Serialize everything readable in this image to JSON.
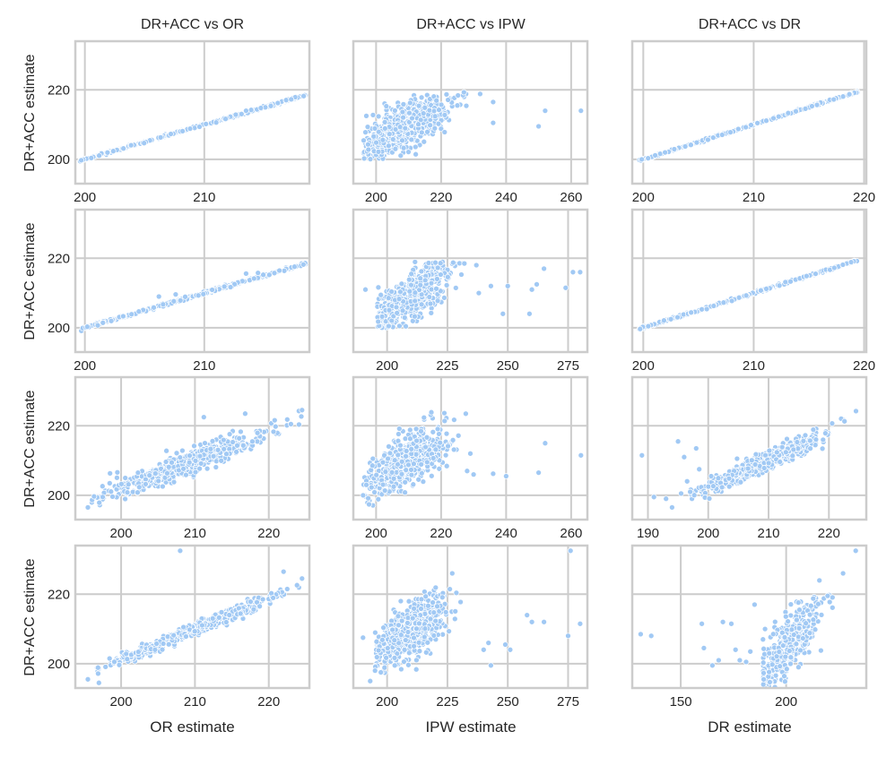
{
  "figure": {
    "col_titles": [
      "DR+ACC vs OR",
      "DR+ACC vs IPW",
      "DR+ACC vs DR"
    ],
    "row_ylabel": "DR+ACC estimate",
    "xlabels": [
      "OR estimate",
      "IPW estimate",
      "DR estimate"
    ]
  },
  "colors": {
    "point": "#a1c9f4",
    "point_edge": "#ffffff",
    "grid": "#cccccc",
    "frame": "#cccccc",
    "text": "#262626"
  },
  "chart_data": [
    {
      "type": "scatter",
      "row": 0,
      "col": 0,
      "title": "DR+ACC vs OR",
      "ylabel": "DR+ACC estimate",
      "xlim": [
        199.2,
        218.8
      ],
      "ylim": [
        193,
        234
      ],
      "xticks": [
        200,
        210
      ],
      "yticks": [
        200,
        220
      ],
      "pattern": "line",
      "x_range": [
        199.6,
        218.6
      ],
      "slope": 1.0,
      "intercept": 0,
      "noise": 0.15,
      "n": 300,
      "outliers": [
        [
          213.5,
          214.0
        ],
        [
          211.0,
          210.6
        ]
      ]
    },
    {
      "type": "scatter",
      "row": 0,
      "col": 1,
      "title": "DR+ACC vs IPW",
      "ylabel": "DR+ACC estimate",
      "xlim": [
        193,
        265
      ],
      "ylim": [
        193,
        234
      ],
      "xticks": [
        200,
        220,
        240,
        260
      ],
      "yticks": [
        200,
        220
      ],
      "pattern": "cloud",
      "x_center": 209,
      "x_spread": 6.5,
      "slope": 0.45,
      "intercept": 115.5,
      "noise": 3.2,
      "x_min": 196,
      "y_clip": [
        200,
        219
      ],
      "n": 620,
      "outliers": [
        [
          197,
          212.5
        ],
        [
          232,
          218.8
        ],
        [
          236,
          216.5
        ],
        [
          236,
          210.5
        ],
        [
          250,
          209.5
        ],
        [
          252,
          214
        ],
        [
          263,
          214
        ],
        [
          227,
          219.3
        ],
        [
          225,
          215.5
        ]
      ]
    },
    {
      "type": "scatter",
      "row": 0,
      "col": 2,
      "title": "DR+ACC vs DR",
      "ylabel": "DR+ACC estimate",
      "xlim": [
        199.0,
        220.2
      ],
      "ylim": [
        193,
        234
      ],
      "xticks": [
        200,
        210,
        220
      ],
      "yticks": [
        200,
        220
      ],
      "pattern": "line",
      "x_range": [
        199.6,
        219.4
      ],
      "slope": 1.0,
      "intercept": 0,
      "noise": 0.12,
      "n": 300,
      "outliers": []
    },
    {
      "type": "scatter",
      "row": 1,
      "col": 0,
      "title": "",
      "ylabel": "DR+ACC estimate",
      "xlim": [
        199.2,
        218.8
      ],
      "ylim": [
        193,
        234
      ],
      "xticks": [
        200,
        210
      ],
      "yticks": [
        200,
        220
      ],
      "pattern": "line",
      "x_range": [
        199.6,
        218.6
      ],
      "slope": 1.0,
      "intercept": 0,
      "noise": 0.2,
      "n": 300,
      "outliers": [
        [
          206.2,
          209.0
        ],
        [
          207.6,
          209.6
        ],
        [
          213.5,
          215.6
        ],
        [
          214.5,
          215.8
        ]
      ]
    },
    {
      "type": "scatter",
      "row": 1,
      "col": 1,
      "title": "",
      "ylabel": "DR+ACC estimate",
      "xlim": [
        186,
        283
      ],
      "ylim": [
        193,
        234
      ],
      "xticks": [
        200,
        225,
        250,
        275
      ],
      "yticks": [
        200,
        220
      ],
      "pattern": "cloud",
      "x_center": 210,
      "x_spread": 7.5,
      "slope": 0.42,
      "intercept": 121,
      "noise": 3.2,
      "x_min": 196,
      "y_clip": [
        200,
        219
      ],
      "n": 640,
      "outliers": [
        [
          191,
          211
        ],
        [
          238,
          210
        ],
        [
          243,
          212
        ],
        [
          248,
          204
        ],
        [
          250,
          212
        ],
        [
          259,
          204
        ],
        [
          260,
          211
        ],
        [
          262,
          212.5
        ],
        [
          265,
          217
        ],
        [
          274,
          211.5
        ],
        [
          277,
          216
        ],
        [
          280,
          216
        ],
        [
          237,
          218
        ],
        [
          232,
          218.5
        ]
      ]
    },
    {
      "type": "scatter",
      "row": 1,
      "col": 2,
      "title": "",
      "ylabel": "DR+ACC estimate",
      "xlim": [
        199.0,
        220.2
      ],
      "ylim": [
        193,
        234
      ],
      "xticks": [
        200,
        210,
        220
      ],
      "yticks": [
        200,
        220
      ],
      "pattern": "line",
      "x_range": [
        199.6,
        219.4
      ],
      "slope": 1.0,
      "intercept": 0,
      "noise": 0.15,
      "n": 300,
      "outliers": []
    },
    {
      "type": "scatter",
      "row": 2,
      "col": 0,
      "title": "",
      "ylabel": "DR+ACC estimate",
      "xlim": [
        193.8,
        225.5
      ],
      "ylim": [
        193,
        234
      ],
      "xticks": [
        200,
        210,
        220
      ],
      "yticks": [
        200,
        220
      ],
      "pattern": "band",
      "x_center": 209,
      "x_spread": 5.5,
      "x_clip": [
        196,
        224.5
      ],
      "slope": 0.8,
      "intercept": 42,
      "noise": 1.6,
      "n": 560,
      "outliers": [
        [
          195.5,
          196.5
        ],
        [
          197.5,
          199.5
        ],
        [
          198.5,
          206.3
        ],
        [
          199.5,
          206.6
        ],
        [
          211.2,
          222.5
        ],
        [
          216.8,
          223.5
        ],
        [
          224.5,
          224.5
        ],
        [
          222.5,
          221.8
        ],
        [
          223,
          220.5
        ]
      ]
    },
    {
      "type": "scatter",
      "row": 2,
      "col": 1,
      "title": "",
      "ylabel": "DR+ACC estimate",
      "xlim": [
        193,
        265
      ],
      "ylim": [
        193,
        234
      ],
      "xticks": [
        200,
        220,
        240,
        260
      ],
      "yticks": [
        200,
        220
      ],
      "pattern": "cloud",
      "x_center": 210,
      "x_spread": 6,
      "slope": 0.55,
      "intercept": 94.5,
      "noise": 3.6,
      "x_min": 196,
      "y_clip": [
        197,
        224
      ],
      "n": 640,
      "outliers": [
        [
          196,
          200
        ],
        [
          197,
          203
        ],
        [
          228,
          207
        ],
        [
          229,
          212
        ],
        [
          230,
          206
        ],
        [
          236,
          206.2
        ],
        [
          240,
          205.5
        ],
        [
          250,
          206.5
        ],
        [
          252,
          215
        ],
        [
          263,
          211.5
        ]
      ]
    },
    {
      "type": "scatter",
      "row": 2,
      "col": 2,
      "title": "",
      "ylabel": "DR+ACC estimate",
      "xlim": [
        187.4,
        226.2
      ],
      "ylim": [
        193,
        234
      ],
      "xticks": [
        190,
        200,
        210,
        220
      ],
      "yticks": [
        200,
        220
      ],
      "pattern": "band",
      "x_center": 209,
      "x_spread": 5,
      "x_clip": [
        197,
        224.5
      ],
      "slope": 0.8,
      "intercept": 42,
      "noise": 1.4,
      "n": 560,
      "outliers": [
        [
          189,
          211.5
        ],
        [
          191,
          199.5
        ],
        [
          193,
          199
        ],
        [
          194,
          196.5
        ],
        [
          195,
          215.5
        ],
        [
          195.5,
          200.5
        ],
        [
          196,
          211
        ],
        [
          197,
          201
        ],
        [
          198,
          213.5
        ],
        [
          198.5,
          207.5
        ],
        [
          196.5,
          204
        ]
      ]
    },
    {
      "type": "scatter",
      "row": 3,
      "col": 0,
      "title": "",
      "ylabel": "DR+ACC estimate",
      "xlim": [
        193.8,
        225.5
      ],
      "ylim": [
        193,
        234
      ],
      "xticks": [
        200,
        210,
        220
      ],
      "yticks": [
        200,
        220
      ],
      "pattern": "band",
      "x_center": 210,
      "x_spread": 5.5,
      "x_clip": [
        196.5,
        224.5
      ],
      "slope": 0.88,
      "intercept": 25,
      "noise": 0.9,
      "n": 560,
      "outliers": [
        [
          195.5,
          195.5
        ],
        [
          197,
          194.5
        ],
        [
          208,
          232.5
        ],
        [
          222,
          226.5
        ],
        [
          224.5,
          224.5
        ],
        [
          222.5,
          221.5
        ]
      ]
    },
    {
      "type": "scatter",
      "row": 3,
      "col": 1,
      "title": "",
      "ylabel": "DR+ACC estimate",
      "xlim": [
        186,
        283
      ],
      "ylim": [
        193,
        234
      ],
      "xticks": [
        200,
        225,
        250,
        275
      ],
      "yticks": [
        200,
        220
      ],
      "pattern": "cloud",
      "x_center": 210,
      "x_spread": 7,
      "slope": 0.45,
      "intercept": 115,
      "noise": 3.8,
      "x_min": 195,
      "y_clip": [
        197,
        224
      ],
      "n": 660,
      "outliers": [
        [
          190,
          207.5
        ],
        [
          193,
          195
        ],
        [
          195,
          198
        ],
        [
          227,
          226
        ],
        [
          240,
          204
        ],
        [
          242,
          206
        ],
        [
          243,
          199.5
        ],
        [
          249,
          205.5
        ],
        [
          251,
          204
        ],
        [
          260,
          212
        ],
        [
          265,
          212
        ],
        [
          275,
          208
        ],
        [
          276,
          232.5
        ],
        [
          280,
          211.5
        ],
        [
          258,
          214
        ]
      ]
    },
    {
      "type": "scatter",
      "row": 3,
      "col": 2,
      "title": "",
      "ylabel": "DR+ACC estimate",
      "xlim": [
        127,
        238
      ],
      "ylim": [
        193,
        234
      ],
      "xticks": [
        150,
        200
      ],
      "yticks": [
        200,
        220
      ],
      "pattern": "band",
      "x_center": 201,
      "x_spread": 7,
      "x_clip": [
        189,
        226
      ],
      "slope": 0.7,
      "intercept": 64,
      "noise": 3.5,
      "n": 600,
      "outliers": [
        [
          131,
          208.5
        ],
        [
          136,
          208
        ],
        [
          160,
          211.5
        ],
        [
          161,
          204.5
        ],
        [
          165,
          199.5
        ],
        [
          168,
          201
        ],
        [
          170,
          212
        ],
        [
          174,
          211.5
        ],
        [
          176,
          204
        ],
        [
          178,
          201
        ],
        [
          181,
          200.5
        ],
        [
          183,
          203.5
        ],
        [
          185,
          217
        ],
        [
          189,
          207
        ],
        [
          190,
          210
        ],
        [
          192,
          203
        ],
        [
          227,
          226
        ],
        [
          233,
          232.5
        ]
      ]
    }
  ]
}
